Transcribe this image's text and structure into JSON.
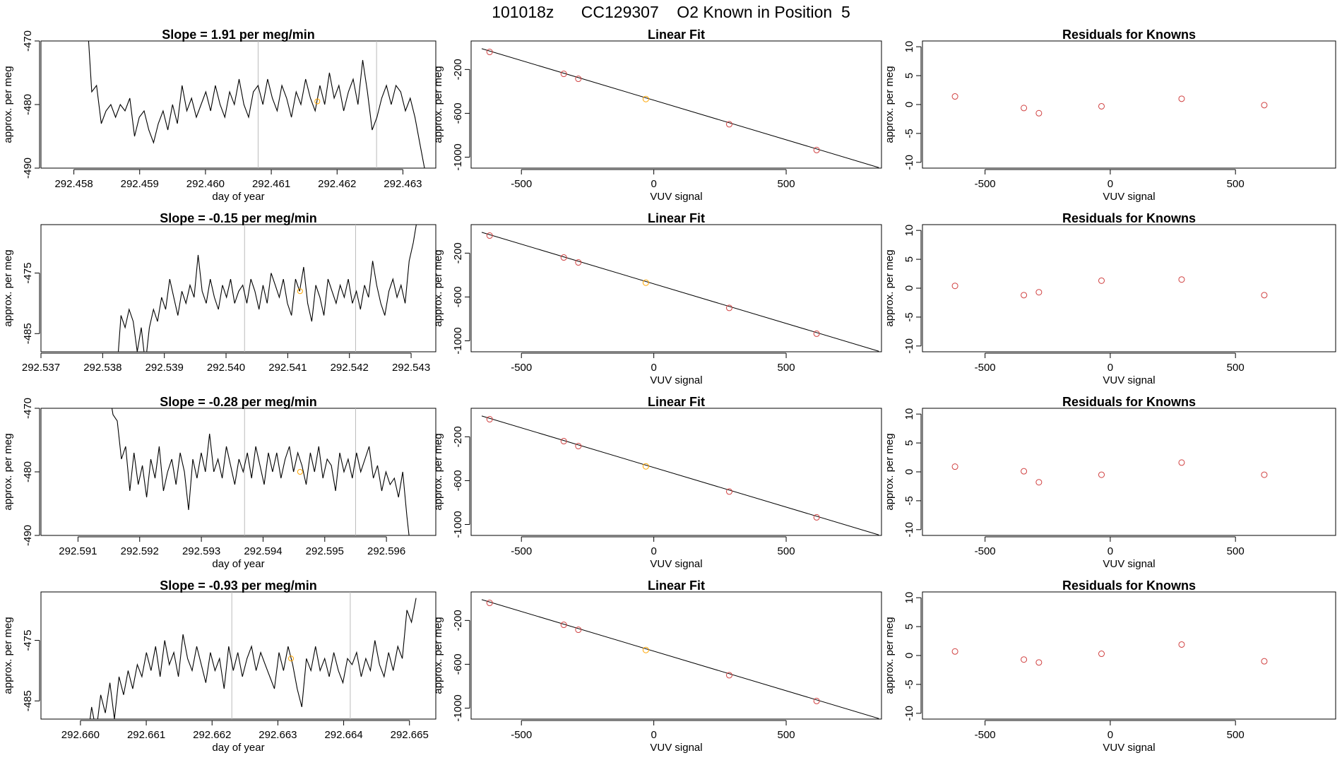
{
  "figure_title": "101018z      CC129307    O2 Known in Position  5",
  "chart_data": [
    {
      "panel": "time-1",
      "type": "line",
      "title": "Slope =  1.91  per meg/min",
      "xlabel": "day of year",
      "ylabel": "approx. per meg",
      "xlim": [
        292.4575,
        292.4635
      ],
      "ylim": [
        -490,
        -470
      ],
      "xticks": [
        "292.458",
        "292.459",
        "292.460",
        "292.461",
        "292.462",
        "292.463"
      ],
      "yticks": [
        "-470",
        "-480",
        "-490"
      ],
      "vlines": [
        292.4608,
        292.4626
      ],
      "marker": {
        "x": 292.4617,
        "y": -479.5,
        "color": "#FFA500"
      },
      "series": [
        {
          "x0": 292.4582,
          "x1": 292.4634,
          "values": [
            -466,
            -478,
            -477,
            -483,
            -481,
            -480,
            -482,
            -480,
            -481,
            -479,
            -485,
            -482,
            -481,
            -484,
            -486,
            -483,
            -481,
            -484,
            -480,
            -483,
            -477,
            -481,
            -479,
            -482,
            -480,
            -478,
            -481,
            -477,
            -480,
            -482,
            -478,
            -480,
            -476,
            -480,
            -482,
            -478,
            -477,
            -480,
            -476,
            -479,
            -481,
            -477,
            -479,
            -482,
            -478,
            -480,
            -476,
            -479,
            -481,
            -477,
            -480,
            -475,
            -479,
            -477,
            -481,
            -478,
            -476,
            -480,
            -473,
            -478,
            -484,
            -482,
            -479,
            -477,
            -480,
            -477,
            -478,
            -481,
            -479,
            -482,
            -486,
            -490,
            -495
          ]
        }
      ]
    },
    {
      "panel": "fit-1",
      "type": "scatter",
      "title": "Linear Fit",
      "xlabel": "VUV signal",
      "ylabel": "approx. per meg",
      "xlim": [
        -690,
        860
      ],
      "ylim": [
        -1100,
        60
      ],
      "xticks": [
        "-500",
        "0",
        "500"
      ],
      "yticks": [
        "-200",
        "-600",
        "-1000"
      ],
      "line": {
        "x": [
          -650,
          850
        ],
        "y": [
          -10,
          -1095
        ]
      },
      "points": [
        {
          "x": -620,
          "y": -40,
          "color": "#D04040"
        },
        {
          "x": -340,
          "y": -240,
          "color": "#D04040"
        },
        {
          "x": -285,
          "y": -285,
          "color": "#D04040"
        },
        {
          "x": -30,
          "y": -470,
          "color": "#FFA500"
        },
        {
          "x": 285,
          "y": -700,
          "color": "#D04040"
        },
        {
          "x": 615,
          "y": -935,
          "color": "#D04040"
        }
      ]
    },
    {
      "panel": "resid-1",
      "type": "scatter",
      "title": "Residuals for Knowns",
      "xlabel": "VUV signal",
      "ylabel": "approx. per meg",
      "xlim": [
        -750,
        900
      ],
      "ylim": [
        -11,
        11
      ],
      "xticks": [
        "-500",
        "0",
        "500"
      ],
      "yticks": [
        "10",
        "5",
        "0",
        "-5",
        "-10"
      ],
      "points": [
        {
          "x": -620,
          "y": 1.4
        },
        {
          "x": -345,
          "y": -0.6
        },
        {
          "x": -285,
          "y": -1.5
        },
        {
          "x": -35,
          "y": -0.3
        },
        {
          "x": 285,
          "y": 1.0
        },
        {
          "x": 615,
          "y": -0.1
        }
      ]
    },
    {
      "panel": "time-2",
      "type": "line",
      "title": "Slope =  -0.15  per meg/min",
      "xlabel": "",
      "ylabel": "approx. per meg",
      "xlim": [
        292.537,
        292.5434
      ],
      "ylim": [
        -488,
        -467
      ],
      "xticks": [
        "292.537",
        "292.538",
        "292.539",
        "292.540",
        "292.541",
        "292.542",
        "292.543"
      ],
      "yticks": [
        "-475",
        "-485"
      ],
      "vlines": [
        292.5403,
        292.5421
      ],
      "marker": {
        "x": 292.5412,
        "y": -478,
        "color": "#FFA500"
      },
      "series": [
        {
          "x0": 292.5381,
          "x1": 292.5431,
          "values": [
            -494,
            -488,
            -491,
            -482,
            -484,
            -481,
            -483,
            -488,
            -484,
            -490,
            -484,
            -481,
            -483,
            -479,
            -481,
            -476,
            -479,
            -482,
            -478,
            -480,
            -477,
            -479,
            -472,
            -478,
            -480,
            -476,
            -479,
            -481,
            -477,
            -479,
            -476,
            -480,
            -478,
            -477,
            -480,
            -476,
            -478,
            -481,
            -477,
            -480,
            -475,
            -477,
            -479,
            -476,
            -480,
            -482,
            -476,
            -478,
            -474,
            -480,
            -483,
            -477,
            -479,
            -482,
            -476,
            -478,
            -480,
            -477,
            -479,
            -476,
            -480,
            -478,
            -481,
            -477,
            -479,
            -473,
            -477,
            -480,
            -482,
            -478,
            -476,
            -479,
            -477,
            -480,
            -473,
            -470,
            -466
          ]
        }
      ]
    },
    {
      "panel": "fit-2",
      "type": "scatter",
      "title": "Linear Fit",
      "xlabel": "VUV signal",
      "ylabel": "approx. per meg",
      "xlim": [
        -690,
        860
      ],
      "ylim": [
        -1100,
        60
      ],
      "xticks": [
        "-500",
        "0",
        "500"
      ],
      "yticks": [
        "-200",
        "-600",
        "-1000"
      ],
      "line": {
        "x": [
          -650,
          850
        ],
        "y": [
          -10,
          -1095
        ]
      },
      "points": [
        {
          "x": -620,
          "y": -40,
          "color": "#D04040"
        },
        {
          "x": -340,
          "y": -240,
          "color": "#D04040"
        },
        {
          "x": -285,
          "y": -285,
          "color": "#D04040"
        },
        {
          "x": -30,
          "y": -470,
          "color": "#FFA500"
        },
        {
          "x": 285,
          "y": -700,
          "color": "#D04040"
        },
        {
          "x": 615,
          "y": -935,
          "color": "#D04040"
        }
      ]
    },
    {
      "panel": "resid-2",
      "type": "scatter",
      "title": "Residuals for Knowns",
      "xlabel": "VUV signal",
      "ylabel": "approx. per meg",
      "xlim": [
        -750,
        900
      ],
      "ylim": [
        -11,
        11
      ],
      "xticks": [
        "-500",
        "0",
        "500"
      ],
      "yticks": [
        "10",
        "5",
        "0",
        "-5",
        "-10"
      ],
      "points": [
        {
          "x": -620,
          "y": 0.4
        },
        {
          "x": -345,
          "y": -1.2
        },
        {
          "x": -285,
          "y": -0.7
        },
        {
          "x": -35,
          "y": 1.3
        },
        {
          "x": 285,
          "y": 1.5
        },
        {
          "x": 615,
          "y": -1.2
        }
      ]
    },
    {
      "panel": "time-3",
      "type": "line",
      "title": "Slope =  -0.28  per meg/min",
      "xlabel": "day of year",
      "ylabel": "approx. per meg",
      "xlim": [
        292.5904,
        292.5968
      ],
      "ylim": [
        -490,
        -470
      ],
      "xticks": [
        "292.591",
        "292.592",
        "292.593",
        "292.594",
        "292.595",
        "292.596"
      ],
      "yticks": [
        "-470",
        "-480",
        "-490"
      ],
      "vlines": [
        292.5937,
        292.5955
      ],
      "marker": {
        "x": 292.5946,
        "y": -480,
        "color": "#FFA500"
      },
      "series": [
        {
          "x0": 292.5915,
          "x1": 292.5964,
          "values": [
            -467,
            -471,
            -472,
            -478,
            -476,
            -483,
            -477,
            -482,
            -479,
            -484,
            -478,
            -481,
            -476,
            -483,
            -480,
            -478,
            -482,
            -477,
            -480,
            -486,
            -478,
            -481,
            -477,
            -480,
            -474,
            -480,
            -478,
            -481,
            -476,
            -479,
            -482,
            -478,
            -480,
            -477,
            -481,
            -476,
            -479,
            -482,
            -477,
            -480,
            -477,
            -481,
            -478,
            -476,
            -480,
            -477,
            -479,
            -482,
            -477,
            -480,
            -476,
            -481,
            -478,
            -479,
            -483,
            -477,
            -480,
            -478,
            -481,
            -477,
            -480,
            -478,
            -476,
            -481,
            -479,
            -483,
            -480,
            -482,
            -481,
            -484,
            -480,
            -487,
            -493
          ]
        }
      ]
    },
    {
      "panel": "fit-3",
      "type": "scatter",
      "title": "Linear Fit",
      "xlabel": "VUV signal",
      "ylabel": "approx. per meg",
      "xlim": [
        -690,
        860
      ],
      "ylim": [
        -1100,
        60
      ],
      "xticks": [
        "-500",
        "0",
        "500"
      ],
      "yticks": [
        "-200",
        "-600",
        "-1000"
      ],
      "line": {
        "x": [
          -650,
          850
        ],
        "y": [
          -10,
          -1095
        ]
      },
      "points": [
        {
          "x": -620,
          "y": -40,
          "color": "#D04040"
        },
        {
          "x": -340,
          "y": -240,
          "color": "#D04040"
        },
        {
          "x": -285,
          "y": -285,
          "color": "#D04040"
        },
        {
          "x": -30,
          "y": -470,
          "color": "#FFA500"
        },
        {
          "x": 285,
          "y": -700,
          "color": "#D04040"
        },
        {
          "x": 615,
          "y": -935,
          "color": "#D04040"
        }
      ]
    },
    {
      "panel": "resid-3",
      "type": "scatter",
      "title": "Residuals for Knowns",
      "xlabel": "VUV signal",
      "ylabel": "approx. per meg",
      "xlim": [
        -750,
        900
      ],
      "ylim": [
        -11,
        11
      ],
      "xticks": [
        "-500",
        "0",
        "500"
      ],
      "yticks": [
        "10",
        "5",
        "0",
        "-5",
        "-10"
      ],
      "points": [
        {
          "x": -620,
          "y": 0.9
        },
        {
          "x": -345,
          "y": 0.1
        },
        {
          "x": -285,
          "y": -1.8
        },
        {
          "x": -35,
          "y": -0.5
        },
        {
          "x": 285,
          "y": 1.6
        },
        {
          "x": 615,
          "y": -0.5
        }
      ]
    },
    {
      "panel": "time-4",
      "type": "line",
      "title": "Slope =  -0.93  per meg/min",
      "xlabel": "day of year",
      "ylabel": "approx. per meg",
      "xlim": [
        292.6594,
        292.6654
      ],
      "ylim": [
        -488,
        -467
      ],
      "xticks": [
        "292.660",
        "292.661",
        "292.662",
        "292.663",
        "292.664",
        "292.665"
      ],
      "yticks": [
        "-475",
        "-485"
      ],
      "vlines": [
        292.6623,
        292.6641
      ],
      "marker": {
        "x": 292.6632,
        "y": -478,
        "color": "#FFA500"
      },
      "series": [
        {
          "x0": 292.6601,
          "x1": 292.6651,
          "values": [
            -492,
            -486,
            -490,
            -484,
            -487,
            -482,
            -488,
            -481,
            -484,
            -480,
            -483,
            -479,
            -481,
            -477,
            -480,
            -476,
            -481,
            -475,
            -479,
            -477,
            -481,
            -474,
            -478,
            -480,
            -476,
            -479,
            -482,
            -477,
            -480,
            -478,
            -483,
            -476,
            -480,
            -477,
            -481,
            -478,
            -476,
            -480,
            -477,
            -479,
            -481,
            -483,
            -477,
            -480,
            -476,
            -479,
            -483,
            -486,
            -478,
            -480,
            -476,
            -480,
            -478,
            -481,
            -477,
            -480,
            -482,
            -478,
            -479,
            -477,
            -481,
            -478,
            -480,
            -475,
            -479,
            -481,
            -477,
            -480,
            -476,
            -478,
            -470,
            -472,
            -468
          ]
        }
      ]
    },
    {
      "panel": "fit-4",
      "type": "scatter",
      "title": "Linear Fit",
      "xlabel": "VUV signal",
      "ylabel": "approx. per meg",
      "xlim": [
        -690,
        860
      ],
      "ylim": [
        -1100,
        60
      ],
      "xticks": [
        "-500",
        "0",
        "500"
      ],
      "yticks": [
        "-200",
        "-600",
        "-1000"
      ],
      "line": {
        "x": [
          -650,
          850
        ],
        "y": [
          -10,
          -1095
        ]
      },
      "points": [
        {
          "x": -620,
          "y": -40,
          "color": "#D04040"
        },
        {
          "x": -340,
          "y": -240,
          "color": "#D04040"
        },
        {
          "x": -285,
          "y": -285,
          "color": "#D04040"
        },
        {
          "x": -30,
          "y": -470,
          "color": "#FFA500"
        },
        {
          "x": 285,
          "y": -700,
          "color": "#D04040"
        },
        {
          "x": 615,
          "y": -935,
          "color": "#D04040"
        }
      ]
    },
    {
      "panel": "resid-4",
      "type": "scatter",
      "title": "Residuals for Knowns",
      "xlabel": "VUV signal",
      "ylabel": "approx. per meg",
      "xlim": [
        -750,
        900
      ],
      "ylim": [
        -11,
        11
      ],
      "xticks": [
        "-500",
        "0",
        "500"
      ],
      "yticks": [
        "10",
        "5",
        "0",
        "-5",
        "-10"
      ],
      "points": [
        {
          "x": -620,
          "y": 0.7
        },
        {
          "x": -345,
          "y": -0.7
        },
        {
          "x": -285,
          "y": -1.2
        },
        {
          "x": -35,
          "y": 0.3
        },
        {
          "x": 285,
          "y": 1.9
        },
        {
          "x": 615,
          "y": -1.0
        }
      ]
    }
  ]
}
